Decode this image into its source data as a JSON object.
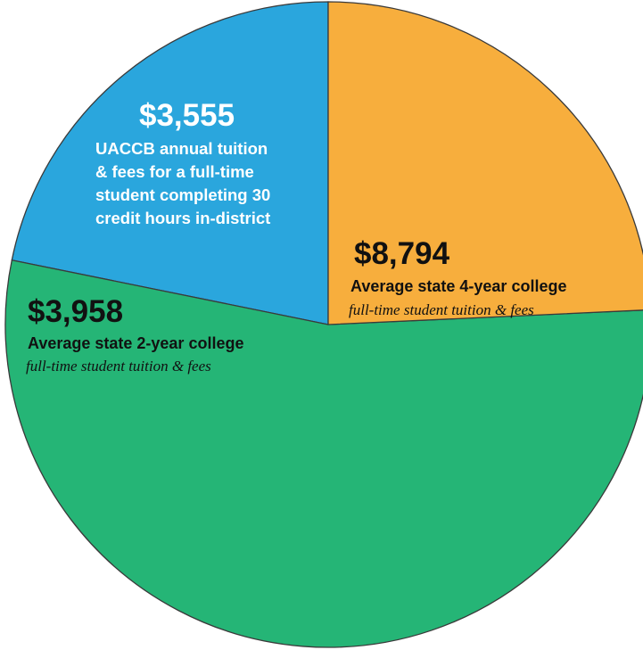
{
  "chart_data": {
    "type": "pie",
    "title": "",
    "slices": [
      {
        "value": 3555,
        "amount": "$3,555",
        "label": "UACCB annual tuition\n& fees for a full-time\nstudent completing 30\ncredit hours in-district",
        "note": "",
        "color": "#2aa6dd"
      },
      {
        "value": 8794,
        "amount": "$8,794",
        "label": "Average state 4-year college",
        "note": "full-time student tuition & fees",
        "color": "#25b576"
      },
      {
        "value": 3958,
        "amount": "$3,958",
        "label": "Average state 2-year college",
        "note": "full-time student tuition & fees",
        "color": "#f7ae3d"
      }
    ],
    "start_angle_deg": -90,
    "direction": "counterclockwise",
    "outline_color": "#3a3a3a"
  }
}
